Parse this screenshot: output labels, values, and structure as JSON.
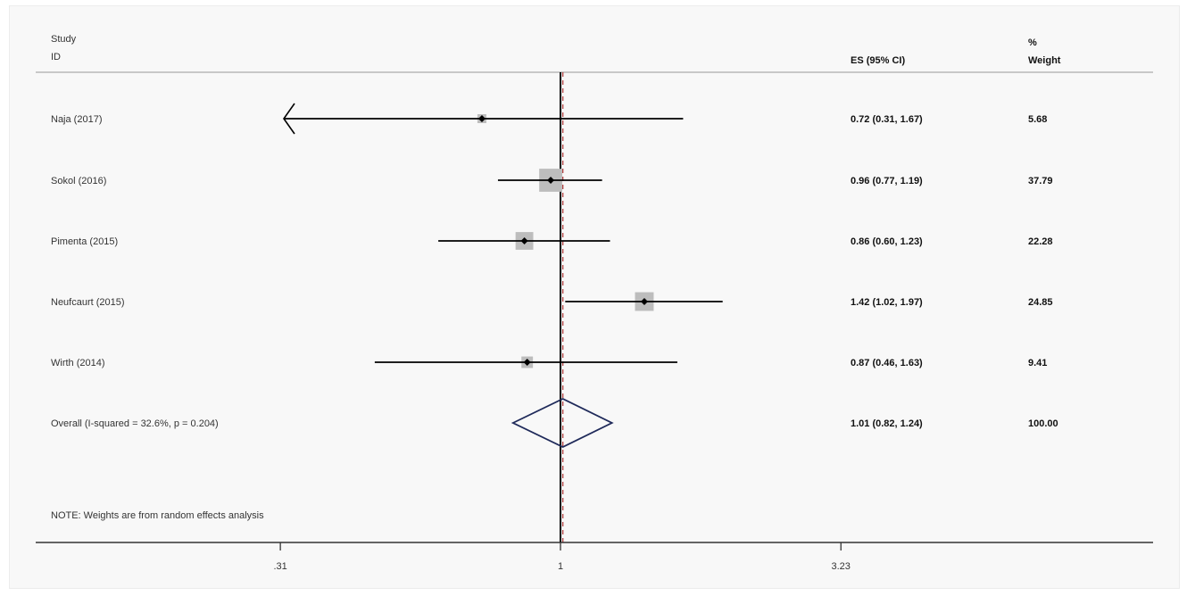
{
  "header": {
    "study_line1": "Study",
    "study_line2": "ID",
    "es_label": "ES (95% CI)",
    "weight_line1": "%",
    "weight_line2": "Weight"
  },
  "note": "NOTE: Weights are from random effects analysis",
  "colors": {
    "ci_line": "#000000",
    "weight_box": "#bdbdbd",
    "overall_diamond": "#1f2a5a",
    "null_line": "#000000",
    "overall_ref_line": "#b04040"
  },
  "chart_data": {
    "type": "forest",
    "x_scale": "log",
    "xlim": [
      0.18,
      6.2
    ],
    "x_ticks": [
      0.31,
      1,
      3.23
    ],
    "x_tick_labels": [
      ".31",
      "1",
      "3.23"
    ],
    "null_value": 1,
    "overall_es": 1.01,
    "studies": [
      {
        "label": "Naja (2017)",
        "es": 0.72,
        "lo": 0.31,
        "hi": 1.67,
        "ci_text": "0.72 (0.31, 1.67)",
        "weight": 5.68,
        "weight_text": "5.68",
        "lower_arrow": true
      },
      {
        "label": "Sokol (2016)",
        "es": 0.96,
        "lo": 0.77,
        "hi": 1.19,
        "ci_text": "0.96 (0.77, 1.19)",
        "weight": 37.79,
        "weight_text": "37.79"
      },
      {
        "label": "Pimenta (2015)",
        "es": 0.86,
        "lo": 0.6,
        "hi": 1.23,
        "ci_text": "0.86 (0.60, 1.23)",
        "weight": 22.28,
        "weight_text": "22.28"
      },
      {
        "label": "Neufcaurt (2015)",
        "es": 1.42,
        "lo": 1.02,
        "hi": 1.97,
        "ci_text": "1.42 (1.02, 1.97)",
        "weight": 24.85,
        "weight_text": "24.85"
      },
      {
        "label": "Wirth (2014)",
        "es": 0.87,
        "lo": 0.46,
        "hi": 1.63,
        "ci_text": "0.87 (0.46, 1.63)",
        "weight": 9.41,
        "weight_text": "9.41"
      }
    ],
    "overall": {
      "label": "Overall  (I-squared = 32.6%, p = 0.204)",
      "es": 1.01,
      "lo": 0.82,
      "hi": 1.24,
      "ci_text": "1.01 (0.82, 1.24)",
      "weight": 100.0,
      "weight_text": "100.00"
    }
  }
}
